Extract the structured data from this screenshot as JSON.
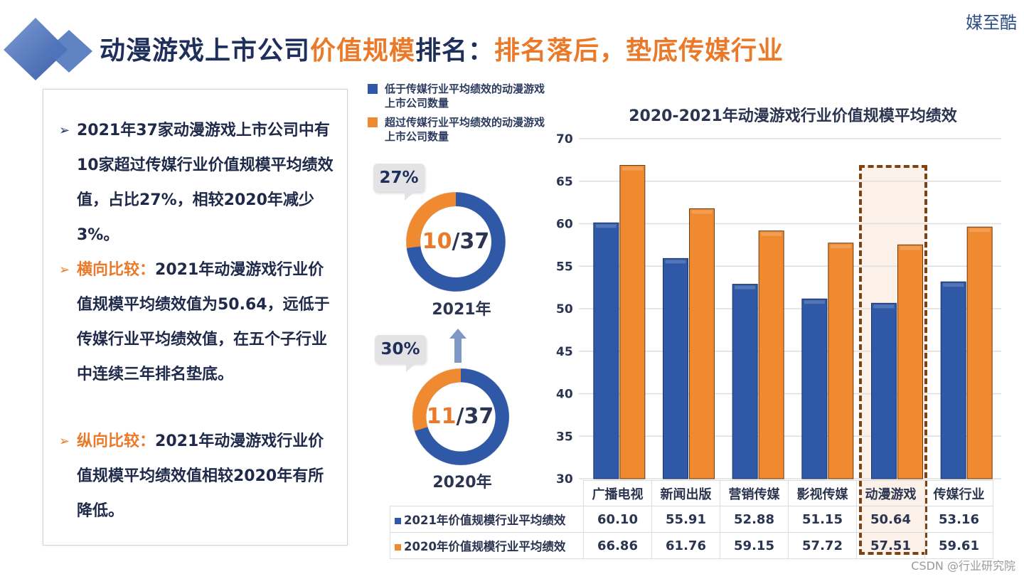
{
  "header": {
    "title_part1": "动漫游戏上市公司",
    "title_part2": "价值规模",
    "title_part3": "排名：",
    "title_part4": "排名落后，垫底传媒行业",
    "brand": "媒至酷",
    "logo_icon": "double-diamond-icon"
  },
  "summary": {
    "bullets": [
      {
        "label": "",
        "text": "2021年37家动漫游戏上市公司中有10家超过传媒行业价值规模平均绩效值，占比27%，相较2020年减少3%。"
      },
      {
        "label": "横向比较：",
        "text": "2021年动漫游戏行业价值规模平均绩效值为50.64，远低于传媒行业平均绩效值，在五个子行业中连续三年排名垫底。"
      },
      {
        "label": "纵向比较：",
        "text": "2021年动漫游戏行业价值规模平均绩效值相较2020年有所降低。"
      }
    ]
  },
  "donut_legend": [
    {
      "label": "低于传媒行业平均绩效的动漫游戏上市公司数量",
      "color": "#2f58a6"
    },
    {
      "label": "超过传媒行业平均绩效的动漫游戏上市公司数量",
      "color": "#f08a30"
    }
  ],
  "colors": {
    "blue": "#2f58a6",
    "orange": "#f08a30",
    "dark_text": "#1f2f5c",
    "highlight_border": "#7a4417"
  },
  "donuts": [
    {
      "year": "2021年",
      "above": 10,
      "total": 37,
      "above_str": "10",
      "total_str": "/37",
      "percent": "27%"
    },
    {
      "year": "2020年",
      "above": 11,
      "total": 37,
      "above_str": "11",
      "total_str": "/37",
      "percent": "30%"
    }
  ],
  "watermark": "CSDN @行业研究院",
  "chart_data": {
    "type": "bar",
    "title": "2020-2021年动漫游戏行业价值规模平均绩效",
    "categories": [
      "广播电视",
      "新闻出版",
      "营销传媒",
      "影视传媒",
      "动漫游戏",
      "传媒行业"
    ],
    "series": [
      {
        "name": "2021年价值规模行业平均绩效",
        "color": "#2f58a6",
        "values": [
          60.1,
          55.91,
          52.88,
          51.15,
          50.64,
          53.16
        ],
        "labels": [
          "60.10",
          "55.91",
          "52.88",
          "51.15",
          "50.64",
          "53.16"
        ]
      },
      {
        "name": "2020年价值规模行业平均绩效",
        "color": "#f08a30",
        "values": [
          66.86,
          61.76,
          59.15,
          57.72,
          57.51,
          59.61
        ],
        "labels": [
          "66.86",
          "61.76",
          "59.15",
          "57.72",
          "57.51",
          "59.61"
        ]
      }
    ],
    "ylim": [
      30,
      70
    ],
    "yticks": [
      30,
      35,
      40,
      45,
      50,
      55,
      60,
      65,
      70
    ],
    "grid": true,
    "highlighted_category": "动漫游戏",
    "xlabel": "",
    "ylabel": ""
  }
}
